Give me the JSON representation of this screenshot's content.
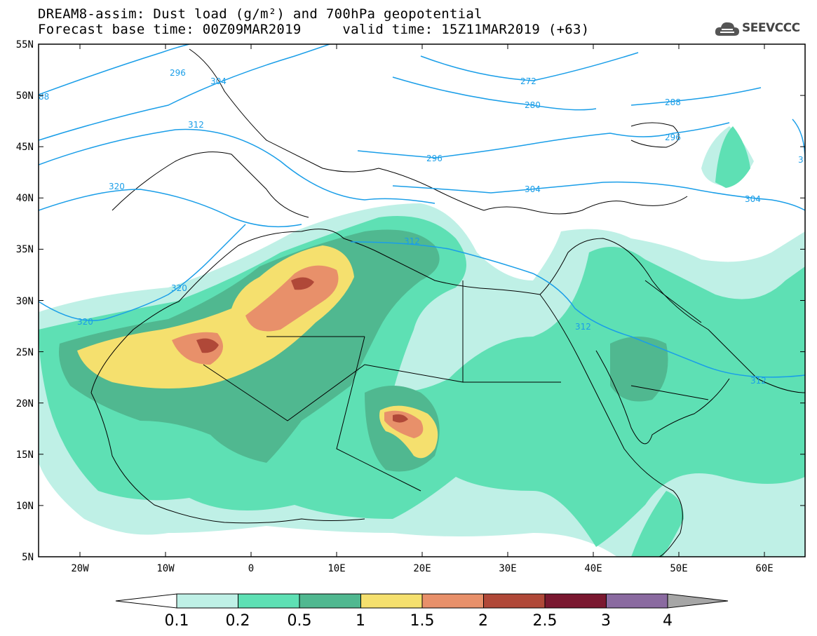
{
  "header": {
    "title": "DREAM8-assim: Dust load (g/m²) and 700hPa geopotential",
    "base_time": "Forecast base time: 00Z09MAR2019",
    "valid_time": "valid time: 15Z11MAR2019 (+63)"
  },
  "logo": {
    "text": "SEEVCCC",
    "icon": "cloud-icon"
  },
  "map": {
    "lat_labels": [
      "55N",
      "50N",
      "45N",
      "40N",
      "35N",
      "30N",
      "25N",
      "20N",
      "15N",
      "10N",
      "5N"
    ],
    "lon_labels": [
      "20W",
      "10W",
      "0",
      "10E",
      "20E",
      "30E",
      "40E",
      "50E",
      "60E"
    ],
    "contour_labels": [
      "296",
      "304",
      "88",
      "312",
      "320",
      "320",
      "320",
      "272",
      "280",
      "288",
      "296",
      "296",
      "304",
      "304",
      "312",
      "312",
      "312",
      "3"
    ]
  },
  "colorbar": {
    "ticks": [
      "0.1",
      "0.2",
      "0.5",
      "1",
      "1.5",
      "2",
      "2.5",
      "3",
      "4"
    ],
    "colors": [
      "#bff0e6",
      "#5ee0b4",
      "#50b890",
      "#f5e06e",
      "#e8906a",
      "#b04838",
      "#7a1830",
      "#8a6aa0",
      "#a6a6a6"
    ]
  },
  "colors": {
    "light": "#bff0e6",
    "mid": "#5ee0b4",
    "dark": "#50b890",
    "yellow": "#f5e06e",
    "orange": "#e8906a",
    "red": "#b04838",
    "contour": "#1a9ee8"
  }
}
